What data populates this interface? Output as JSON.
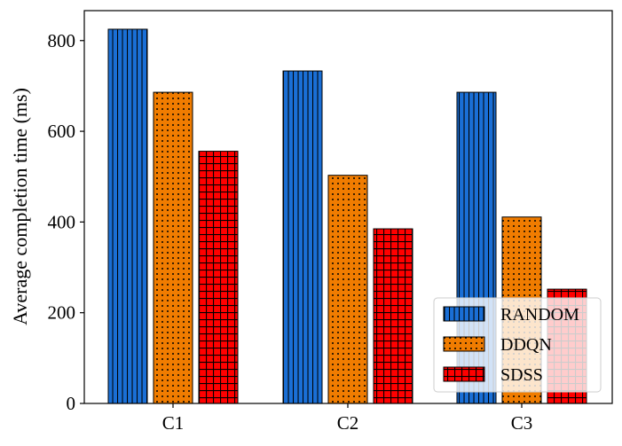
{
  "chart_data": {
    "type": "bar",
    "title": "",
    "xlabel": "",
    "ylabel": "Average completion time (ms)",
    "categories": [
      "C1",
      "C2",
      "C3"
    ],
    "series": [
      {
        "name": "RANDOM",
        "values": [
          825,
          733,
          686
        ],
        "color": "#1a6fd6",
        "hatch": "vertical-lines"
      },
      {
        "name": "DDQN",
        "values": [
          686,
          503,
          411
        ],
        "color": "#f07c00",
        "hatch": "dots"
      },
      {
        "name": "SDSS",
        "values": [
          556,
          385,
          252
        ],
        "color": "#ff0000",
        "hatch": "grid"
      }
    ],
    "ylim": [
      0,
      866
    ],
    "yticks": [
      0,
      200,
      400,
      600,
      800
    ],
    "grid": false,
    "legend_position": "bottom-right"
  }
}
